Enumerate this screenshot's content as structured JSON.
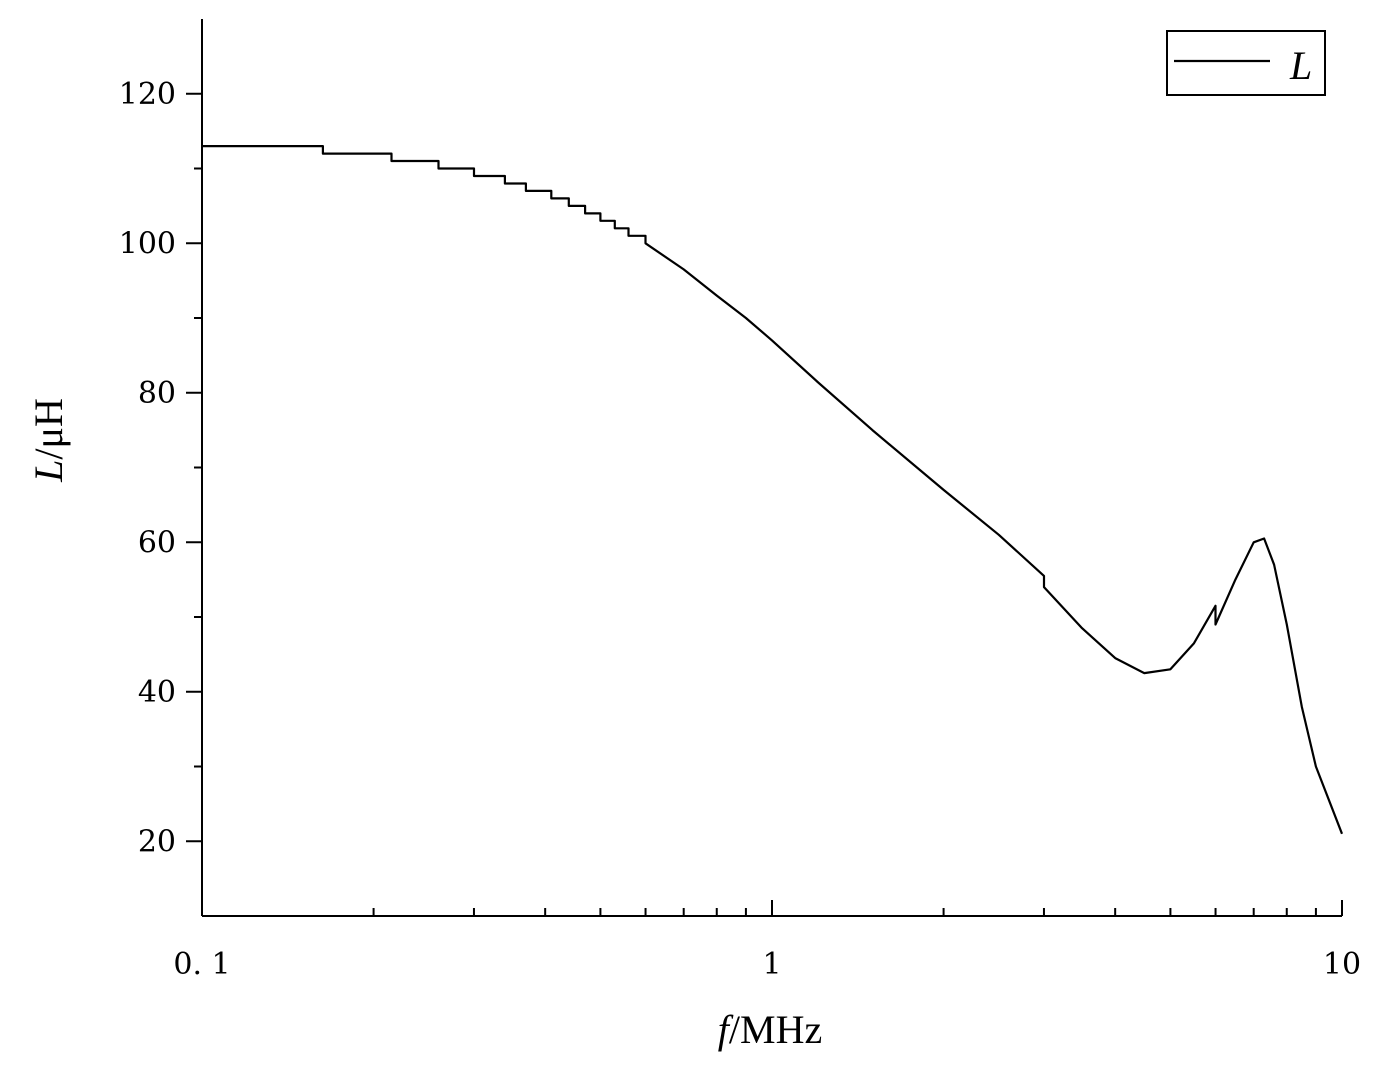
{
  "chart_data": {
    "type": "line",
    "xlabel": {
      "var": "f",
      "unit": "/MHz"
    },
    "ylabel": {
      "var": "L",
      "unit": "/μH"
    },
    "xscale": "log",
    "xlim": [
      0.1,
      10
    ],
    "ylim": [
      10,
      130
    ],
    "x_ticks": [
      {
        "value": 0.1,
        "label": "0. 1"
      },
      {
        "value": 1,
        "label": "1"
      },
      {
        "value": 10,
        "label": "10"
      }
    ],
    "y_ticks": [
      {
        "value": 20,
        "label": "20"
      },
      {
        "value": 40,
        "label": "40"
      },
      {
        "value": 60,
        "label": "60"
      },
      {
        "value": 80,
        "label": "80"
      },
      {
        "value": 100,
        "label": "100"
      },
      {
        "value": 120,
        "label": "120"
      }
    ],
    "y_minor_ticks": [
      30,
      50,
      70,
      90,
      110
    ],
    "grid": false,
    "legend": {
      "position": "top-right",
      "entries": [
        "L"
      ]
    },
    "series": [
      {
        "name": "L",
        "color": "#000000",
        "x": [
          0.1,
          0.163,
          0.163,
          0.215,
          0.215,
          0.26,
          0.26,
          0.3,
          0.3,
          0.34,
          0.34,
          0.37,
          0.37,
          0.41,
          0.41,
          0.44,
          0.44,
          0.47,
          0.47,
          0.5,
          0.5,
          0.53,
          0.53,
          0.56,
          0.56,
          0.6,
          0.6,
          0.7,
          0.8,
          0.9,
          1.0,
          1.2,
          1.5,
          2.0,
          2.5,
          3.0,
          3.0,
          3.5,
          4.0,
          4.5,
          5.0,
          5.5,
          6.0,
          6.0,
          6.5,
          7.0,
          7.3,
          7.6,
          8.0,
          8.5,
          9.0,
          10.0
        ],
        "y": [
          113,
          113,
          112,
          112,
          111,
          111,
          110,
          110,
          109,
          109,
          108,
          108,
          107,
          107,
          106,
          106,
          105,
          105,
          104,
          104,
          103,
          103,
          102,
          102,
          101,
          101,
          100,
          96.5,
          93,
          90,
          87,
          81.5,
          75,
          67,
          61,
          55.5,
          54,
          48.5,
          44.5,
          42.5,
          43,
          46.5,
          51.5,
          49,
          55,
          60,
          60.5,
          57,
          49,
          38,
          30,
          21
        ]
      }
    ]
  }
}
